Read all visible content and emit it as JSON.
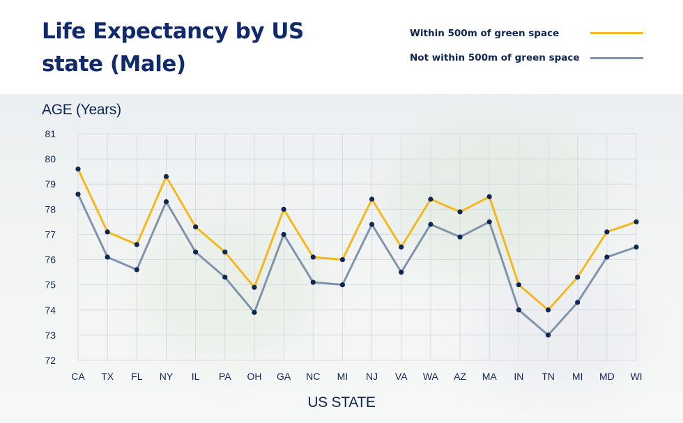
{
  "title": "Life Expectancy by US state (Male)",
  "chart_data": {
    "type": "line",
    "title": "Life Expectancy by US state (Male)",
    "xlabel": "US STATE",
    "ylabel": "AGE (Years)",
    "categories": [
      "CA",
      "TX",
      "FL",
      "NY",
      "IL",
      "PA",
      "OH",
      "GA",
      "NC",
      "MI",
      "NJ",
      "VA",
      "WA",
      "AZ",
      "MA",
      "IN",
      "TN",
      "MI",
      "MD",
      "WI"
    ],
    "ylim": [
      72,
      81
    ],
    "yticks": [
      72,
      73,
      74,
      75,
      76,
      77,
      78,
      79,
      80,
      81
    ],
    "grid": true,
    "legend_position": "top-right",
    "series": [
      {
        "name": "Within 500m of green space",
        "color": "#f5b81c",
        "values": [
          79.6,
          77.1,
          76.6,
          79.3,
          77.3,
          76.3,
          74.9,
          78.0,
          76.1,
          76.0,
          78.4,
          76.5,
          78.4,
          77.9,
          78.5,
          75.0,
          74.0,
          75.3,
          77.1,
          77.5
        ]
      },
      {
        "name": "Not within 500m of green space",
        "color": "#7f94ab",
        "values": [
          78.6,
          76.1,
          75.6,
          78.3,
          76.3,
          75.3,
          73.9,
          77.0,
          75.1,
          75.0,
          77.4,
          75.5,
          77.4,
          76.9,
          77.5,
          74.0,
          73.0,
          74.3,
          76.1,
          76.5
        ]
      }
    ],
    "marker_color": "#0f2653"
  }
}
